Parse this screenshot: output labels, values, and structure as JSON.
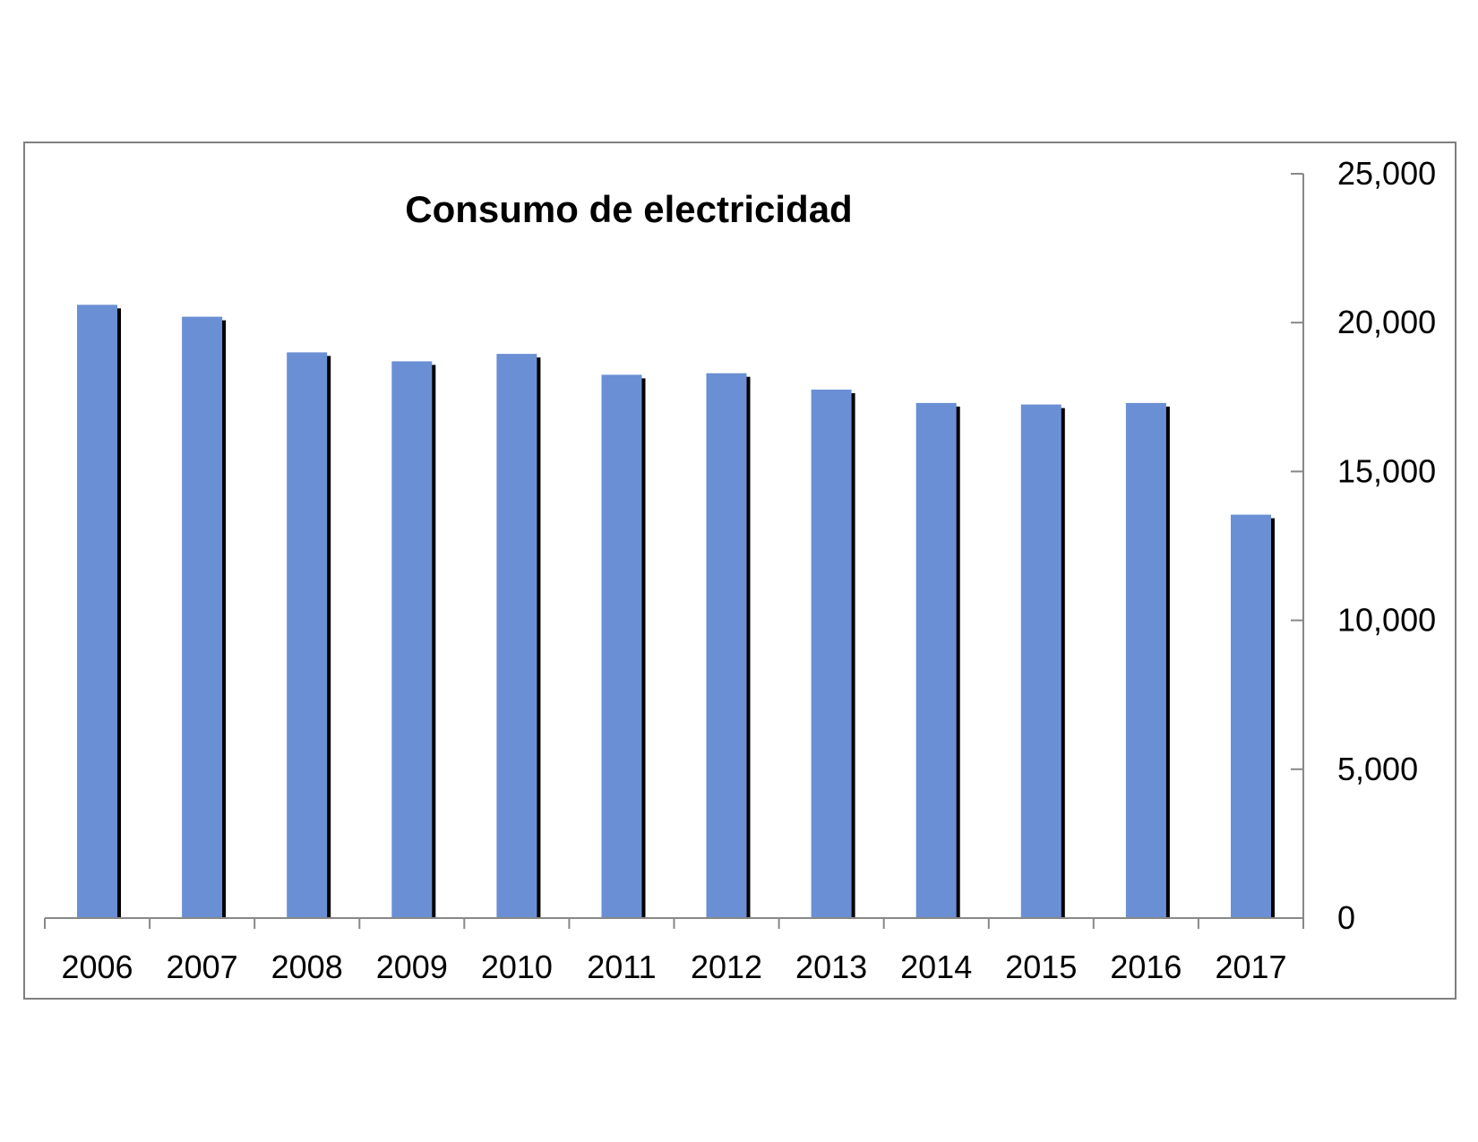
{
  "chart_data": {
    "type": "bar",
    "title": "Consumo de electricidad",
    "xlabel": "",
    "ylabel": "",
    "categories": [
      "2006",
      "2007",
      "2008",
      "2009",
      "2010",
      "2011",
      "2012",
      "2013",
      "2014",
      "2015",
      "2016",
      "2017"
    ],
    "values": [
      20600,
      20200,
      19000,
      18700,
      18950,
      18250,
      18300,
      17750,
      17300,
      17250,
      17300,
      13550
    ],
    "ylim": [
      0,
      25000
    ],
    "yticks": [
      "0",
      "5,000",
      "10,000",
      "15,000",
      "20,000",
      "25,000"
    ],
    "ytick_values": [
      0,
      5000,
      10000,
      15000,
      20000,
      25000
    ],
    "y_axis_side": "right",
    "grid": false,
    "legend": "none",
    "colors": {
      "bar": "#6a8fd4",
      "bar_shadow": "#000000",
      "axis": "#888888",
      "frame": "#7f7f7f"
    }
  }
}
